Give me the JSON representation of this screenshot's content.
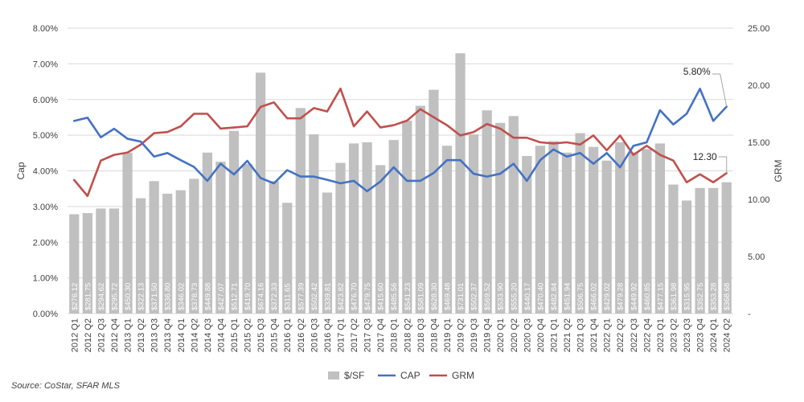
{
  "chart_data": {
    "type": "bar",
    "categories": [
      "2012 Q1",
      "2012 Q2",
      "2012 Q3",
      "2012 Q4",
      "2013 Q1",
      "2013 Q2",
      "2013 Q3",
      "2013 Q4",
      "2014 Q1",
      "2014 Q2",
      "2014 Q3",
      "2014 Q4",
      "2015 Q1",
      "2015 Q2",
      "2015 Q3",
      "2015 Q4",
      "2016 Q1",
      "2016 Q2",
      "2016 Q3",
      "2016 Q4",
      "2017 Q1",
      "2017 Q2",
      "2017 Q3",
      "2017 Q4",
      "2018 Q1",
      "2018 Q2",
      "2018 Q3",
      "2018 Q4",
      "2019 Q1",
      "2019 Q2",
      "2019 Q3",
      "2019 Q4",
      "2020 Q1",
      "2020 Q2",
      "2020 Q3",
      "2020 Q4",
      "2021 Q1",
      "2021 Q2",
      "2021 Q3",
      "2021 Q4",
      "2022 Q1",
      "2022 Q2",
      "2022 Q3",
      "2022 Q4",
      "2023 Q1",
      "2023 Q2",
      "2023 Q3",
      "2023 Q4",
      "2024 Q1",
      "2024 Q2"
    ],
    "series": [
      {
        "name": "$/SF",
        "type": "bar",
        "axis": "right",
        "color": "#c0c0c0",
        "labels": [
          "$276.12",
          "$281.75",
          "$294.62",
          "$295.72",
          "$450.30",
          "$322.13",
          "$371.50",
          "$336.80",
          "$346.02",
          "$378.73",
          "$449.88",
          "$427.07",
          "$512.71",
          "$419.70",
          "$674.16",
          "$372.33",
          "$311.65",
          "$577.39",
          "$502.42",
          "$339.81",
          "$423.82",
          "$476.70",
          "$479.75",
          "$415.60",
          "$485.56",
          "$541.23",
          "$581.09",
          "$628.30",
          "$469.48",
          "$731.01",
          "$502.37",
          "$569.52",
          "$533.90",
          "$555.20",
          "$440.17",
          "$470.40",
          "$482.84",
          "$451.94",
          "$506.75",
          "$466.02",
          "$429.02",
          "$479.28",
          "$449.92",
          "$460.85",
          "$477.15",
          "$361.98",
          "$315.95",
          "$352.75",
          "$353.28",
          "$368.68"
        ],
        "values": [
          8.7,
          8.8,
          9.2,
          9.2,
          14.1,
          10.1,
          11.6,
          10.5,
          10.8,
          11.8,
          14.1,
          13.3,
          16.0,
          13.1,
          21.1,
          11.6,
          9.7,
          18.0,
          15.7,
          10.6,
          13.2,
          14.9,
          15.0,
          13.0,
          15.2,
          16.9,
          18.2,
          19.6,
          14.7,
          22.8,
          15.7,
          17.8,
          16.7,
          17.3,
          13.8,
          14.7,
          15.1,
          14.1,
          15.8,
          14.6,
          13.4,
          15.0,
          14.1,
          14.4,
          14.9,
          11.3,
          9.9,
          11.0,
          11.0,
          11.5
        ]
      },
      {
        "name": "CAP",
        "type": "line",
        "axis": "left",
        "color": "#4472c4",
        "values": [
          5.4,
          5.49,
          4.94,
          5.18,
          4.9,
          4.82,
          4.4,
          4.5,
          4.3,
          4.11,
          3.72,
          4.2,
          3.9,
          4.28,
          3.8,
          3.65,
          4.02,
          3.84,
          3.84,
          3.75,
          3.65,
          3.72,
          3.43,
          3.7,
          4.1,
          3.72,
          3.72,
          3.94,
          4.3,
          4.3,
          3.92,
          3.84,
          3.92,
          4.2,
          3.72,
          4.3,
          4.6,
          4.4,
          4.5,
          4.2,
          4.5,
          4.1,
          4.7,
          4.8,
          5.7,
          5.3,
          5.6,
          6.3,
          5.4,
          5.8
        ]
      },
      {
        "name": "GRM",
        "type": "line",
        "axis": "right",
        "color": "#c0504d",
        "values": [
          11.7,
          10.3,
          13.4,
          13.9,
          14.1,
          14.8,
          15.8,
          15.9,
          16.4,
          17.5,
          17.5,
          16.2,
          16.3,
          16.4,
          18.1,
          18.5,
          17.1,
          17.1,
          18.0,
          17.7,
          19.7,
          16.4,
          17.7,
          16.3,
          16.5,
          16.9,
          17.9,
          17.2,
          16.5,
          15.6,
          15.9,
          16.6,
          16.2,
          15.4,
          15.4,
          15.0,
          14.9,
          15.0,
          14.8,
          15.6,
          14.3,
          15.6,
          13.9,
          14.7,
          13.9,
          13.4,
          11.5,
          12.2,
          11.5,
          12.3
        ]
      }
    ],
    "y_left": {
      "label": "Cap",
      "min": 0,
      "max": 0.08,
      "ticks": [
        "0.00%",
        "1.00%",
        "2.00%",
        "3.00%",
        "4.00%",
        "5.00%",
        "6.00%",
        "7.00%",
        "8.00%"
      ]
    },
    "y_right": {
      "label": "GRM",
      "min": 0,
      "max": 25,
      "ticks": [
        "-",
        "5.00",
        "10.00",
        "15.00",
        "20.00",
        "25.00"
      ]
    },
    "annotations": [
      {
        "text": "5.80%",
        "series": "CAP",
        "category": "2024 Q2"
      },
      {
        "text": "12.30",
        "series": "GRM",
        "category": "2024 Q2"
      }
    ],
    "grid": true,
    "legend_position": "bottom"
  },
  "source_note": "Source: CoStar, SFAR MLS"
}
